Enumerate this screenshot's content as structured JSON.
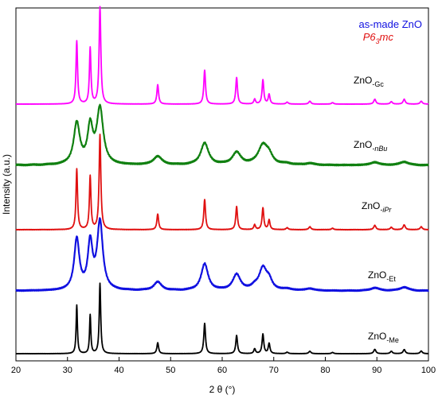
{
  "chart_data": {
    "type": "line",
    "xlabel": "2 θ (°)",
    "ylabel": "Intensity (a.u.)",
    "xlim": [
      20,
      100
    ],
    "xticks": [
      20,
      30,
      40,
      50,
      60,
      70,
      80,
      90,
      100
    ],
    "grid": false,
    "legend": {
      "placement": "top-right",
      "lines": [
        {
          "text": "as-made ZnO",
          "color": "#1010e0"
        },
        {
          "text_main": "P6",
          "text_sub": "3",
          "text_after": "mc",
          "color": "#e01010",
          "italic": true
        }
      ]
    },
    "series": [
      {
        "label_main": "ZnO",
        "label_sub": "-Gc",
        "sub_italic": false,
        "color": "#ff00ff",
        "baseline": 4,
        "noise": 0.06,
        "stroke": 1.8,
        "peaks": [
          [
            31.8,
            26,
            0.18
          ],
          [
            34.4,
            23,
            0.18
          ],
          [
            36.3,
            40,
            0.2
          ],
          [
            47.5,
            8,
            0.2
          ],
          [
            56.6,
            14,
            0.2
          ],
          [
            62.8,
            11,
            0.2
          ],
          [
            66.3,
            2,
            0.2
          ],
          [
            67.9,
            10,
            0.2
          ],
          [
            69.1,
            4,
            0.2
          ],
          [
            72.6,
            0.8,
            0.25
          ],
          [
            77.0,
            1.2,
            0.25
          ],
          [
            81.4,
            0.6,
            0.25
          ],
          [
            89.6,
            2,
            0.25
          ],
          [
            92.8,
            1,
            0.25
          ],
          [
            95.3,
            2,
            0.25
          ],
          [
            98.6,
            1.2,
            0.25
          ]
        ]
      },
      {
        "label_main": "ZnO",
        "label_sub": "-nBu",
        "sub_italic": true,
        "color": "#108010",
        "baseline": 3.5,
        "noise": 0.3,
        "stroke": 2.2,
        "peaks": [
          [
            31.8,
            17,
            0.7
          ],
          [
            34.4,
            15,
            0.6
          ],
          [
            36.3,
            23,
            0.75
          ],
          [
            47.5,
            3.5,
            1.0
          ],
          [
            56.6,
            9,
            0.9
          ],
          [
            62.8,
            5,
            1.0
          ],
          [
            67.9,
            8,
            1.1
          ],
          [
            69.1,
            3,
            0.8
          ],
          [
            72.6,
            0.5,
            1.0
          ],
          [
            77.0,
            0.7,
            1.0
          ],
          [
            89.6,
            1.2,
            1.0
          ],
          [
            95.3,
            1.4,
            1.0
          ]
        ]
      },
      {
        "label_main": "ZnO",
        "label_sub": "-iPr",
        "sub_italic": true,
        "color": "#e01010",
        "baseline": 3.8,
        "noise": 0.1,
        "stroke": 1.8,
        "peaks": [
          [
            31.8,
            25,
            0.18
          ],
          [
            34.4,
            22,
            0.18
          ],
          [
            36.3,
            39,
            0.2
          ],
          [
            47.5,
            6.5,
            0.2
          ],
          [
            56.6,
            12.5,
            0.2
          ],
          [
            62.8,
            9.5,
            0.2
          ],
          [
            66.3,
            2,
            0.2
          ],
          [
            67.9,
            9,
            0.2
          ],
          [
            69.1,
            4,
            0.2
          ],
          [
            72.6,
            0.8,
            0.25
          ],
          [
            77.0,
            1.2,
            0.25
          ],
          [
            81.4,
            0.6,
            0.25
          ],
          [
            89.6,
            1.8,
            0.25
          ],
          [
            92.8,
            1,
            0.25
          ],
          [
            95.3,
            2,
            0.25
          ],
          [
            98.6,
            1.2,
            0.25
          ]
        ]
      },
      {
        "label_main": "ZnO",
        "label_sub": "-Et",
        "sub_italic": false,
        "color": "#1010e0",
        "baseline": 3.5,
        "noise": 0.25,
        "stroke": 2.2,
        "peaks": [
          [
            31.8,
            21,
            0.6
          ],
          [
            34.4,
            19,
            0.55
          ],
          [
            36.3,
            28,
            0.65
          ],
          [
            47.5,
            3.5,
            0.9
          ],
          [
            56.6,
            11,
            0.8
          ],
          [
            62.8,
            6.5,
            0.9
          ],
          [
            66.3,
            1.2,
            0.7
          ],
          [
            67.9,
            9,
            0.9
          ],
          [
            69.1,
            3.5,
            0.7
          ],
          [
            72.6,
            0.6,
            1.0
          ],
          [
            77.0,
            0.8,
            1.0
          ],
          [
            89.6,
            1.2,
            1.0
          ],
          [
            95.3,
            1.5,
            1.0
          ]
        ]
      },
      {
        "label_main": "ZnO",
        "label_sub": "-Me",
        "sub_italic": false,
        "color": "#000000",
        "baseline": 3.5,
        "noise": 0.05,
        "stroke": 1.8,
        "peaks": [
          [
            31.8,
            20,
            0.15
          ],
          [
            34.4,
            16,
            0.15
          ],
          [
            36.3,
            29,
            0.17
          ],
          [
            47.5,
            4.5,
            0.2
          ],
          [
            56.6,
            12.5,
            0.2
          ],
          [
            62.8,
            7.5,
            0.2
          ],
          [
            66.3,
            2,
            0.2
          ],
          [
            67.9,
            8,
            0.2
          ],
          [
            69.1,
            4.2,
            0.2
          ],
          [
            72.6,
            0.6,
            0.25
          ],
          [
            77.0,
            1,
            0.25
          ],
          [
            81.4,
            0.5,
            0.25
          ],
          [
            89.6,
            1.8,
            0.25
          ],
          [
            92.8,
            1,
            0.25
          ],
          [
            95.3,
            1.7,
            0.25
          ],
          [
            98.6,
            1.1,
            0.25
          ]
        ]
      }
    ]
  }
}
